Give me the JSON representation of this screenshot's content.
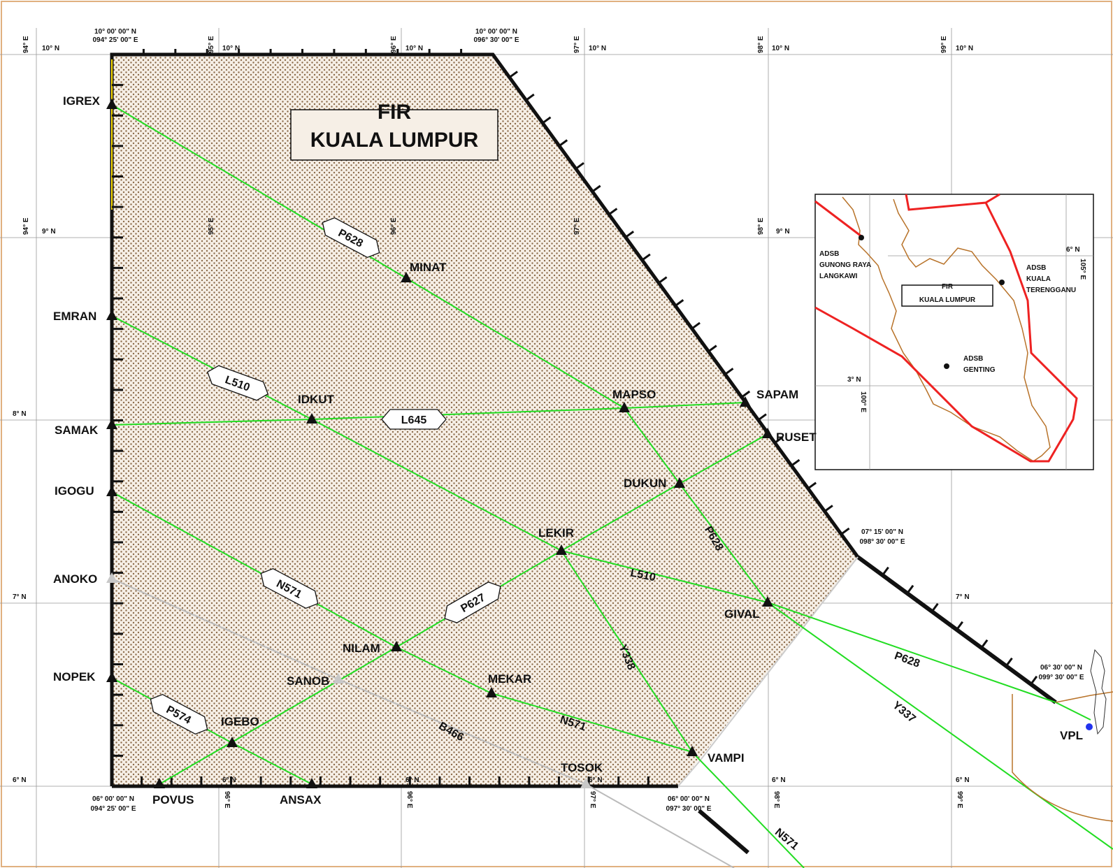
{
  "fir": {
    "title_line1": "FIR",
    "title_line2": "KUALA LUMPUR"
  },
  "corner_labels": {
    "nw_lat": "10° 00' 00\" N",
    "nw_lon": "094° 25' 00\" E",
    "ne_lat": "10° 00' 00\" N",
    "ne_lon": "096° 30' 00\" E",
    "se_lat": "07° 15' 00\" N",
    "se_lon": "098° 30' 00\" E",
    "sw_lat": "06° 00' 00\" N",
    "sw_lon": "094° 25' 00\" E",
    "s_lat": "06° 00' 00\" N",
    "s_lon": "097° 30' 00\" E",
    "vpl_lat": "06° 30' 00\" N",
    "vpl_lon": "099° 30' 00\" E"
  },
  "grid": {
    "lat_labels": [
      "10° N",
      "9° N",
      "8° N",
      "7° N",
      "6° N"
    ],
    "lon_labels": [
      "94° E",
      "95° E",
      "96° E",
      "97° E",
      "98° E",
      "99° E"
    ]
  },
  "waypoints": [
    {
      "id": "IGREX",
      "name": "IGREX"
    },
    {
      "id": "EMRAN",
      "name": "EMRAN"
    },
    {
      "id": "SAMAK",
      "name": "SAMAK"
    },
    {
      "id": "IGOGU",
      "name": "IGOGU"
    },
    {
      "id": "ANOKO",
      "name": "ANOKO"
    },
    {
      "id": "NOPEK",
      "name": "NOPEK"
    },
    {
      "id": "POVUS",
      "name": "POVUS"
    },
    {
      "id": "ANSAX",
      "name": "ANSAX"
    },
    {
      "id": "MINAT",
      "name": "MINAT"
    },
    {
      "id": "IDKUT",
      "name": "IDKUT"
    },
    {
      "id": "MAPSO",
      "name": "MAPSO"
    },
    {
      "id": "SAPAM",
      "name": "SAPAM"
    },
    {
      "id": "RUSET",
      "name": "RUSET"
    },
    {
      "id": "DUKUN",
      "name": "DUKUN"
    },
    {
      "id": "LEKIR",
      "name": "LEKIR"
    },
    {
      "id": "GIVAL",
      "name": "GIVAL"
    },
    {
      "id": "NILAM",
      "name": "NILAM"
    },
    {
      "id": "SANOB",
      "name": "SANOB"
    },
    {
      "id": "MEKAR",
      "name": "MEKAR"
    },
    {
      "id": "IGEBO",
      "name": "IGEBO"
    },
    {
      "id": "VAMPI",
      "name": "VAMPI"
    },
    {
      "id": "TOSOK",
      "name": "TOSOK"
    },
    {
      "id": "VPL",
      "name": "VPL"
    }
  ],
  "routes": [
    "P628",
    "L510",
    "L645",
    "N571",
    "P627",
    "P574",
    "Y338",
    "B466",
    "Y337"
  ],
  "inset": {
    "fir_line1": "FIR",
    "fir_line2": "KUALA LUMPUR",
    "stations": [
      {
        "line1": "ADSB",
        "line2": "GUNONG RAYA",
        "line3": "LANGKAWI"
      },
      {
        "line1": "ADSB",
        "line2": "KUALA",
        "line3": "TERENGGANU"
      },
      {
        "line1": "ADSB",
        "line2": "GENTING",
        "line3": ""
      }
    ],
    "grid_labels": [
      "6° N",
      "3° N",
      "100° E",
      "105° E"
    ]
  },
  "colors": {
    "route": "#22dd22",
    "boundary": "#111111",
    "inactive_route": "#bbbbbb",
    "fir_fill_dots": "#8b6b4a",
    "inset_boundary": "#ee2222",
    "coast": "#b8732a"
  }
}
